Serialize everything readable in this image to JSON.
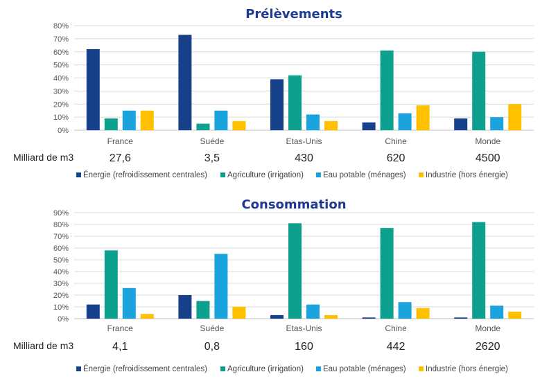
{
  "colors": {
    "title": "#1f3a93",
    "series": [
      "#17408b",
      "#0ea08e",
      "#1aa3dd",
      "#ffc000"
    ],
    "grid": "#d9d9d9",
    "axis": "#bfbfbf"
  },
  "volume_label": "Milliard de m3",
  "legend": [
    "Énergie (refroidissement centrales)",
    "Agriculture (irrigation)",
    "Eau potable (ménages)",
    "Industrie (hors énergie)"
  ],
  "chart_data": [
    {
      "type": "bar",
      "title": "Prélèvements",
      "categories": [
        "France",
        "Suéde",
        "Etas-Unis",
        "Chine",
        "Monde"
      ],
      "ylim": [
        0,
        80
      ],
      "yticks": [
        "0%",
        "10%",
        "20%",
        "30%",
        "40%",
        "50%",
        "60%",
        "70%",
        "80%"
      ],
      "grid": true,
      "legend_position": "bottom",
      "series": [
        {
          "name": "Énergie (refroidissement centrales)",
          "values": [
            62,
            73,
            39,
            6,
            9
          ]
        },
        {
          "name": "Agriculture (irrigation)",
          "values": [
            9,
            5,
            42,
            61,
            60
          ]
        },
        {
          "name": "Eau potable (ménages)",
          "values": [
            15,
            15,
            12,
            13,
            10
          ]
        },
        {
          "name": "Industrie (hors énergie)",
          "values": [
            15,
            7,
            7,
            19,
            20
          ]
        }
      ],
      "volumes": [
        "27,6",
        "3,5",
        "430",
        "620",
        "4500"
      ]
    },
    {
      "type": "bar",
      "title": "Consommation",
      "categories": [
        "France",
        "Suéde",
        "Etas-Unis",
        "Chine",
        "Monde"
      ],
      "ylim": [
        0,
        90
      ],
      "yticks": [
        "0%",
        "10%",
        "20%",
        "30%",
        "40%",
        "50%",
        "60%",
        "70%",
        "80%",
        "90%"
      ],
      "grid": true,
      "legend_position": "bottom",
      "series": [
        {
          "name": "Énergie (refroidissement centrales)",
          "values": [
            12,
            20,
            3,
            1,
            1
          ]
        },
        {
          "name": "Agriculture (irrigation)",
          "values": [
            58,
            15,
            81,
            77,
            82
          ]
        },
        {
          "name": "Eau potable (ménages)",
          "values": [
            26,
            55,
            12,
            14,
            11
          ]
        },
        {
          "name": "Industrie (hors énergie)",
          "values": [
            4,
            10,
            3,
            9,
            6
          ]
        }
      ],
      "volumes": [
        "4,1",
        "0,8",
        "160",
        "442",
        "2620"
      ]
    }
  ]
}
